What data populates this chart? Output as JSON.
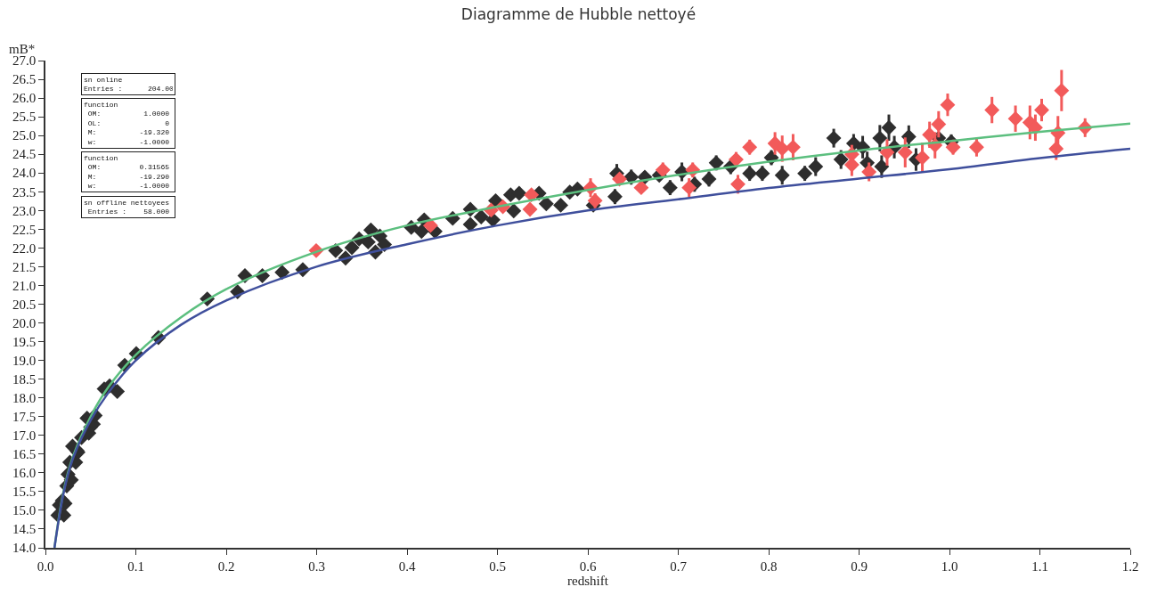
{
  "chart_data": {
    "type": "scatter",
    "title": "Diagramme de Hubble nettoyé",
    "xlabel": "redshift",
    "ylabel": "mB*",
    "xlim": [
      0.0,
      1.2
    ],
    "xticks": [
      {
        "value": 0.0,
        "label": "0.0"
      },
      0.1,
      0.2,
      0.3,
      0.4,
      0.5,
      0.6,
      0.7,
      0.8,
      0.9,
      {
        "value": 1.0,
        "label": "1.0"
      },
      1.1,
      1.2
    ],
    "ylim": [
      14.0,
      27.0
    ],
    "yticks": [
      {
        "value": 14,
        "label": "14.0"
      },
      14.5,
      {
        "value": 15,
        "label": "15.0"
      },
      15.5,
      {
        "value": 16,
        "label": "16.0"
      },
      16.5,
      {
        "value": 17,
        "label": "17.0"
      },
      17.5,
      {
        "value": 18,
        "label": "18.0"
      },
      18.5,
      {
        "value": 19,
        "label": "19.0"
      },
      19.5,
      {
        "value": 20,
        "label": "20.0"
      },
      20.5,
      {
        "value": 21,
        "label": "21.0"
      },
      21.5,
      {
        "value": 22,
        "label": "22.0"
      },
      22.5,
      {
        "value": 23,
        "label": "23.0"
      },
      23.5,
      {
        "value": 24,
        "label": "24.0"
      },
      24.5,
      {
        "value": 25,
        "label": "25.0"
      },
      25.5,
      {
        "value": 26,
        "label": "26.0"
      },
      26.5,
      {
        "value": 27,
        "label": "27.0"
      }
    ],
    "marker": "diamond",
    "series": [
      {
        "color": "#2e2e2e",
        "x": [
          0.0138,
          0.0155,
          0.0187,
          0.0217,
          0.0204,
          0.0236,
          0.025,
          0.0286,
          0.027,
          0.0335,
          0.03,
          0.035,
          0.036,
          0.04,
          0.046,
          0.05,
          0.053,
          0.055,
          0.048,
          0.065,
          0.071,
          0.0795,
          0.0877,
          0.1005,
          0.125,
          0.179,
          0.2125,
          0.2207,
          0.24,
          0.2618,
          0.2847,
          0.321,
          0.332,
          0.339,
          0.347,
          0.357,
          0.36,
          0.365,
          0.37,
          0.375,
          0.4047,
          0.419,
          0.416,
          0.431,
          0.4505,
          0.47,
          0.47,
          0.482,
          0.495,
          0.498,
          0.5146,
          0.518,
          0.524,
          0.546,
          0.554,
          0.57,
          0.58,
          0.5885,
          0.606,
          0.632,
          0.648,
          0.63,
          0.663,
          0.679,
          0.691,
          0.704,
          0.718,
          0.734,
          0.742,
          0.758,
          0.779,
          0.793,
          0.803,
          0.815,
          0.84,
          0.852,
          0.872,
          0.88,
          0.894,
          0.904,
          0.909,
          0.923,
          0.925,
          0.933,
          0.939,
          0.955,
          0.963,
          0.988,
          1.002
        ],
        "values": [
          14.87,
          15.14,
          15.26,
          15.18,
          14.87,
          15.65,
          15.96,
          15.81,
          16.28,
          16.28,
          16.71,
          16.59,
          16.55,
          16.94,
          17.46,
          17.22,
          17.3,
          17.53,
          17.06,
          18.24,
          18.32,
          18.17,
          18.87,
          19.18,
          19.61,
          20.64,
          20.83,
          21.26,
          21.26,
          21.35,
          21.42,
          21.93,
          21.73,
          22.01,
          22.24,
          22.16,
          22.48,
          21.89,
          22.32,
          22.09,
          22.55,
          22.75,
          22.44,
          22.44,
          22.79,
          23.03,
          22.63,
          22.83,
          22.75,
          23.26,
          23.42,
          22.99,
          23.46,
          23.46,
          23.18,
          23.14,
          23.49,
          23.57,
          23.14,
          23.99,
          23.89,
          23.37,
          23.89,
          23.94,
          23.61,
          24.03,
          23.7,
          23.84,
          24.27,
          24.17,
          23.99,
          23.99,
          24.41,
          23.94,
          23.99,
          24.17,
          24.93,
          24.36,
          24.79,
          24.69,
          24.27,
          24.93,
          24.17,
          25.21,
          24.69,
          24.97,
          24.36,
          24.93,
          24.83
        ],
        "errors": [
          null,
          null,
          null,
          null,
          null,
          null,
          null,
          null,
          null,
          null,
          null,
          null,
          null,
          null,
          null,
          null,
          null,
          null,
          null,
          null,
          null,
          null,
          null,
          null,
          null,
          null,
          null,
          null,
          null,
          null,
          null,
          null,
          null,
          null,
          null,
          null,
          null,
          null,
          null,
          null,
          null,
          null,
          null,
          null,
          null,
          null,
          null,
          null,
          null,
          null,
          null,
          null,
          null,
          null,
          null,
          null,
          null,
          null,
          null,
          0.25,
          0.2,
          0.2,
          0.15,
          0.15,
          0.2,
          0.25,
          0.2,
          0.2,
          0.2,
          0.2,
          0.2,
          0.2,
          0.2,
          0.25,
          0.2,
          0.25,
          0.25,
          0.25,
          0.25,
          0.3,
          0.3,
          0.35,
          0.3,
          0.35,
          0.3,
          0.3,
          0.3,
          null,
          0.2
        ]
      },
      {
        "color": "#f25a5a",
        "x": [
          0.2995,
          0.426,
          0.493,
          0.506,
          0.5376,
          0.536,
          0.603,
          0.608,
          0.635,
          0.659,
          0.683,
          0.712,
          0.716,
          0.764,
          0.766,
          0.779,
          0.807,
          0.815,
          0.827,
          0.892,
          0.892,
          0.911,
          0.931,
          0.951,
          0.97,
          0.978,
          0.984,
          0.988,
          0.998,
          1.004,
          1.03,
          1.047,
          1.073,
          1.089,
          1.095,
          1.102,
          1.12,
          1.118,
          1.124,
          1.15
        ],
        "values": [
          21.93,
          22.6,
          23.01,
          23.1,
          23.42,
          23.03,
          23.61,
          23.26,
          23.84,
          23.61,
          24.08,
          23.61,
          24.08,
          24.36,
          23.7,
          24.69,
          24.79,
          24.65,
          24.69,
          24.5,
          24.22,
          24.03,
          24.55,
          24.55,
          24.41,
          25.02,
          24.74,
          25.3,
          25.82,
          24.69,
          24.69,
          25.68,
          25.45,
          25.35,
          25.21,
          25.68,
          25.07,
          24.65,
          26.2,
          25.21
        ],
        "errors": [
          null,
          null,
          null,
          null,
          null,
          null,
          0.25,
          0.2,
          0.15,
          0.15,
          0.2,
          0.25,
          0.2,
          0.2,
          0.25,
          0.2,
          0.3,
          0.35,
          0.35,
          0.25,
          0.3,
          0.25,
          0.35,
          0.4,
          0.4,
          0.35,
          0.35,
          0.35,
          0.3,
          0.2,
          0.25,
          0.35,
          0.35,
          0.45,
          0.35,
          0.3,
          0.45,
          0.3,
          0.55,
          0.25
        ]
      },
      {
        "type": "line",
        "marker": "none",
        "color": "#5cbf7f",
        "x": [
          0.01,
          0.02,
          0.03,
          0.05,
          0.07,
          0.1,
          0.15,
          0.2,
          0.3,
          0.4,
          0.5,
          0.6,
          0.7,
          0.8,
          0.9,
          1.0,
          1.1,
          1.2
        ],
        "values": [
          14.0,
          15.5,
          16.4,
          17.5,
          18.3,
          19.15,
          20.15,
          20.9,
          21.9,
          22.6,
          23.1,
          23.55,
          23.95,
          24.3,
          24.6,
          24.85,
          25.1,
          25.32
        ]
      },
      {
        "type": "line",
        "marker": "none",
        "color": "#3f4f9c",
        "x": [
          0.01,
          0.02,
          0.03,
          0.05,
          0.07,
          0.1,
          0.15,
          0.2,
          0.3,
          0.4,
          0.5,
          0.6,
          0.7,
          0.8,
          0.9,
          1.0,
          1.1,
          1.2
        ],
        "values": [
          14.0,
          15.45,
          16.35,
          17.4,
          18.15,
          19.0,
          19.95,
          20.6,
          21.5,
          22.1,
          22.6,
          23.0,
          23.3,
          23.6,
          23.85,
          24.1,
          24.4,
          24.65
        ]
      }
    ],
    "annotations": [
      "sn online\nEntries :      204.00",
      "function\n OM:          1.0000\n OL:               0\n M:          -19.320\n w:          -1.0000",
      "function\n OM:         0.31565\n M:          -19.290\n w:          -1.0000",
      "sn offline nettoyees\n Entries :    58.000"
    ]
  }
}
